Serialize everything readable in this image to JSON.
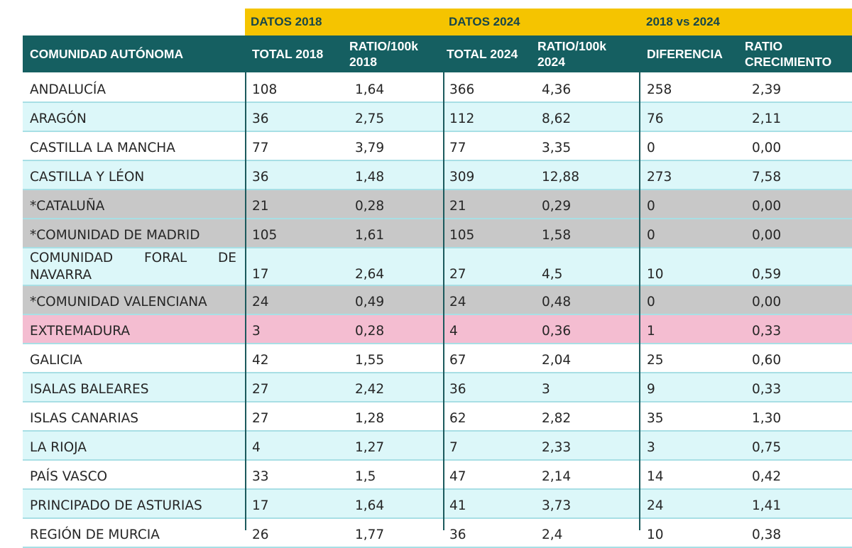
{
  "groups": {
    "g2018": "DATOS 2018",
    "g2024": "DATOS 2024",
    "gcmp": "2018 vs 2024"
  },
  "headers": {
    "comunidad": "COMUNIDAD AUTÓNOMA",
    "total2018": "TOTAL 2018",
    "ratio2018": "RATIO/100k\n2018",
    "total2024": "TOTAL 2024",
    "ratio2024": "RATIO/100k\n2024",
    "diferencia": "DIFERENCIA",
    "crecimiento": "RATIO\nCRECIMIENTO"
  },
  "colors": {
    "group_bg": "#f5c400",
    "header_bg": "#155f61",
    "row_cyan": "#dcf7f9",
    "row_gray": "#c8c8c8",
    "row_pink": "#f4bdd1"
  },
  "rows": [
    {
      "name": "ANDALUCÍA",
      "t18": "108",
      "r18": "1,64",
      "t24": "366",
      "r24": "4,36",
      "dif": "258",
      "crec": "2,39"
    },
    {
      "name": "ARAGÓN",
      "t18": "36",
      "r18": "2,75",
      "t24": "112",
      "r24": "8,62",
      "dif": "76",
      "crec": "2,11"
    },
    {
      "name": "CASTILLA LA MANCHA",
      "t18": "77",
      "r18": "3,79",
      "t24": "77",
      "r24": "3,35",
      "dif": "0",
      "crec": "0,00"
    },
    {
      "name": "CASTILLA Y LÉON",
      "t18": "36",
      "r18": "1,48",
      "t24": "309",
      "r24": "12,88",
      "dif": "273",
      "crec": "7,58"
    },
    {
      "name": "*CATALUÑA",
      "t18": "21",
      "r18": "0,28",
      "t24": "21",
      "r24": "0,29",
      "dif": "0",
      "crec": "0,00"
    },
    {
      "name": "*COMUNIDAD DE MADRID",
      "t18": "105",
      "r18": "1,61",
      "t24": "105",
      "r24": "1,58",
      "dif": "0",
      "crec": "0,00"
    },
    {
      "name_w1": "COMUNIDAD",
      "name_w2": "FORAL",
      "name_w3": "DE",
      "name_line2": "NAVARRA",
      "t18": "17",
      "r18": "2,64",
      "t24": "27",
      "r24": "4,5",
      "dif": "10",
      "crec": "0,59"
    },
    {
      "name": "*COMUNIDAD VALENCIANA",
      "t18": "24",
      "r18": "0,49",
      "t24": "24",
      "r24": "0,48",
      "dif": "0",
      "crec": "0,00"
    },
    {
      "name": "EXTREMADURA",
      "t18": "3",
      "r18": "0,28",
      "t24": "4",
      "r24": "0,36",
      "dif": "1",
      "crec": "0,33"
    },
    {
      "name": "GALICIA",
      "t18": "42",
      "r18": "1,55",
      "t24": "67",
      "r24": "2,04",
      "dif": "25",
      "crec": "0,60"
    },
    {
      "name": "ISALAS BALEARES",
      "t18": "27",
      "r18": "2,42",
      "t24": "36",
      "r24": "3",
      "dif": "9",
      "crec": "0,33"
    },
    {
      "name": "ISLAS CANARIAS",
      "t18": "27",
      "r18": "1,28",
      "t24": "62",
      "r24": "2,82",
      "dif": "35",
      "crec": "1,30"
    },
    {
      "name": "LA RIOJA",
      "t18": "4",
      "r18": "1,27",
      "t24": "7",
      "r24": "2,33",
      "dif": "3",
      "crec": "0,75"
    },
    {
      "name": "PAÍS VASCO",
      "t18": "33",
      "r18": "1,5",
      "t24": "47",
      "r24": "2,14",
      "dif": "14",
      "crec": "0,42"
    },
    {
      "name": "PRINCIPADO DE ASTURIAS",
      "t18": "17",
      "r18": "1,64",
      "t24": "41",
      "r24": "3,73",
      "dif": "24",
      "crec": "1,41"
    },
    {
      "name": "REGIÓN DE MURCIA",
      "t18": "26",
      "r18": "1,77",
      "t24": "36",
      "r24": "2,4",
      "dif": "10",
      "crec": "0,38"
    }
  ]
}
